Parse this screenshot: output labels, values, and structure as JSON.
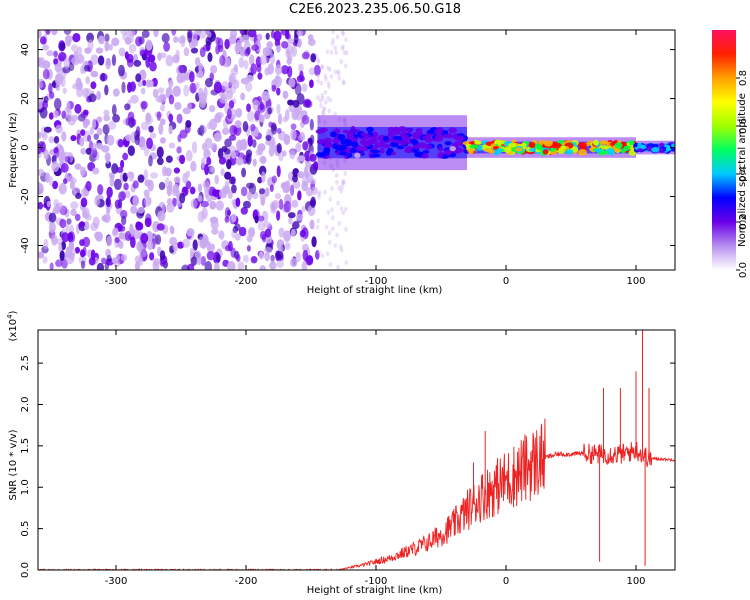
{
  "title": "C2E6.2023.235.06.50.G18",
  "chart_data": [
    {
      "type": "heatmap",
      "panel": "spectrogram",
      "xlabel": "Height of straight line (km)",
      "ylabel": "Frequency (Hz)",
      "xlim": [
        -360,
        130
      ],
      "ylim": [
        -50,
        48
      ],
      "xticks": [
        -300,
        -200,
        -100,
        0,
        100
      ],
      "yticks": [
        -40,
        -20,
        0,
        20,
        40
      ],
      "colorbar": {
        "label": "Normalized spectral amplitude",
        "range": [
          0.0,
          1.0
        ],
        "ticks": [
          0.0,
          0.2,
          0.4,
          0.6,
          0.8
        ],
        "colors": [
          "#ffffff",
          "#c9a8f0",
          "#6a00e8",
          "#0000ff",
          "#00d0ff",
          "#00ff40",
          "#c8ff00",
          "#ffb000",
          "#ff0000",
          "#ff1060"
        ]
      },
      "regions": [
        {
          "x_range": [
            -360,
            -145
          ],
          "f_range": [
            -50,
            48
          ],
          "amplitude": 0.1,
          "description": "noise"
        },
        {
          "x_range": [
            -145,
            -30
          ],
          "f_center": 2,
          "f_halfwidth": 8,
          "amplitude": 0.3
        },
        {
          "x_range": [
            -30,
            100
          ],
          "f_center": 0,
          "f_halfwidth": 3,
          "amplitude": 0.8
        },
        {
          "x_range": [
            100,
            130
          ],
          "f_center": 0,
          "f_halfwidth": 2,
          "amplitude": 0.4
        }
      ]
    },
    {
      "type": "line",
      "panel": "snr",
      "xlabel": "Height of straight line (km)",
      "ylabel": "SNR (10 * v/v)",
      "y_multiplier": "(x10",
      "y_multiplier_exp": "4",
      "y_multiplier_close": ")",
      "xlim": [
        -360,
        130
      ],
      "ylim": [
        0,
        2.9
      ],
      "xticks": [
        -300,
        -200,
        -100,
        0,
        100
      ],
      "yticks": [
        0.0,
        0.5,
        1.0,
        1.5,
        2.0,
        2.5
      ],
      "series": [
        {
          "color": "#ee2222",
          "x": [
            -360,
            -300,
            -200,
            -130,
            -120,
            -110,
            -100,
            -90,
            -80,
            -70,
            -60,
            -50,
            -40,
            -30,
            -20,
            -10,
            0,
            10,
            20,
            30,
            40,
            50,
            60,
            70,
            80,
            90,
            100,
            105,
            110,
            120,
            130
          ],
          "y": [
            0.0,
            0.0,
            0.0,
            0.0,
            0.03,
            0.06,
            0.1,
            0.14,
            0.2,
            0.26,
            0.33,
            0.43,
            0.55,
            0.72,
            0.88,
            0.98,
            1.08,
            1.18,
            1.28,
            1.36,
            1.4,
            1.4,
            1.41,
            1.4,
            1.4,
            1.4,
            1.45,
            1.4,
            1.35,
            1.34,
            1.33
          ]
        }
      ],
      "spikes": [
        {
          "x": -25,
          "y": 1.3
        },
        {
          "x": -16,
          "y": 1.68
        },
        {
          "x": 72,
          "y": 0.1
        },
        {
          "x": 75,
          "y": 2.2
        },
        {
          "x": 88,
          "y": 2.2
        },
        {
          "x": 100,
          "y": 2.4
        },
        {
          "x": 105,
          "y": 2.9
        },
        {
          "x": 107,
          "y": 0.05
        },
        {
          "x": 110,
          "y": 2.2
        }
      ]
    }
  ]
}
